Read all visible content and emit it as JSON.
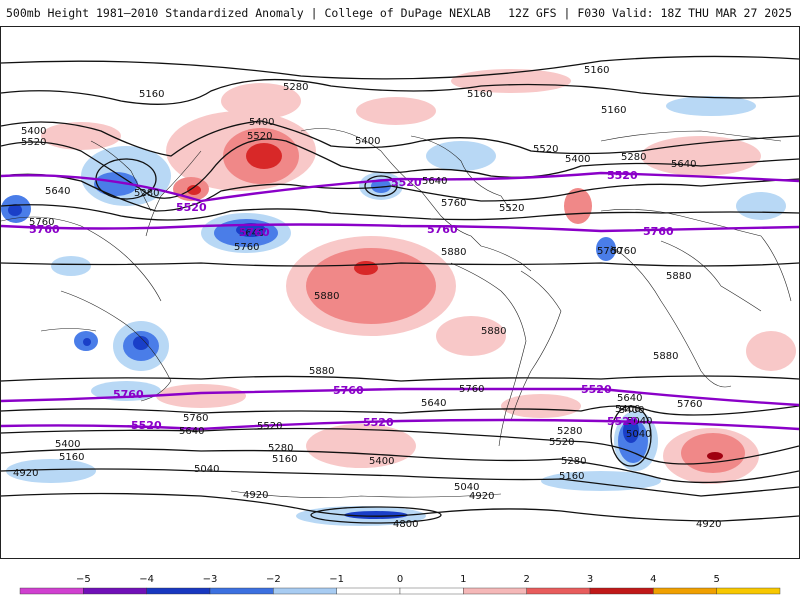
{
  "header": {
    "title_left": "500mb Height 1981–2010 Standardized Anomaly | College of DuPage NEXLAB",
    "title_right": "12Z GFS | F030 Valid: 18Z THU MAR 27 2025"
  },
  "map": {
    "projection": "global-equirectangular",
    "contour_labels": [
      "5160",
      "5280",
      "5160",
      "5400",
      "5520",
      "5400",
      "5160",
      "5160",
      "5400",
      "5280",
      "5640",
      "5400",
      "5520",
      "5640",
      "5280",
      "5520",
      "5640",
      "5760",
      "5520",
      "5760",
      "5640",
      "5760",
      "5880",
      "5880",
      "5880",
      "5880",
      "5880",
      "5880",
      "5760",
      "5640",
      "5760",
      "5760",
      "5640",
      "5400",
      "5520",
      "5640",
      "5760",
      "5400",
      "5160",
      "5520",
      "5280",
      "5400",
      "5160",
      "5280",
      "5040",
      "5040",
      "5160",
      "4920",
      "5040",
      "4920",
      "4920",
      "4800",
      "4920",
      "5400",
      "5280",
      "5040",
      "5760"
    ],
    "purple_contour_labels": [
      "5520",
      "5760",
      "5520",
      "5760",
      "5520",
      "5760",
      "5760",
      "5760",
      "5520",
      "5520",
      "5760",
      "5520",
      "5520"
    ],
    "anomaly_colors": {
      "neg5": "#e07ae0",
      "neg4": "#7a18c8",
      "neg3": "#1a3fc8",
      "neg2": "#4a7de8",
      "neg1": "#b8d8f5",
      "pos1": "#f8c8c8",
      "pos2": "#f08888",
      "pos3": "#d82828",
      "pos4": "#a00010",
      "pos5": "#f5a000"
    }
  },
  "colorbar": {
    "ticks": [
      "−5",
      "−4",
      "−3",
      "−2",
      "−1",
      "0",
      "1",
      "2",
      "3",
      "4",
      "5"
    ],
    "colors": [
      "#d040d0",
      "#7010b8",
      "#1838c0",
      "#3c70e0",
      "#a8ccf2",
      "#ffffff",
      "#ffffff",
      "#f5b8b8",
      "#e85c5c",
      "#c01818",
      "#f0a000",
      "#f8c800"
    ]
  }
}
